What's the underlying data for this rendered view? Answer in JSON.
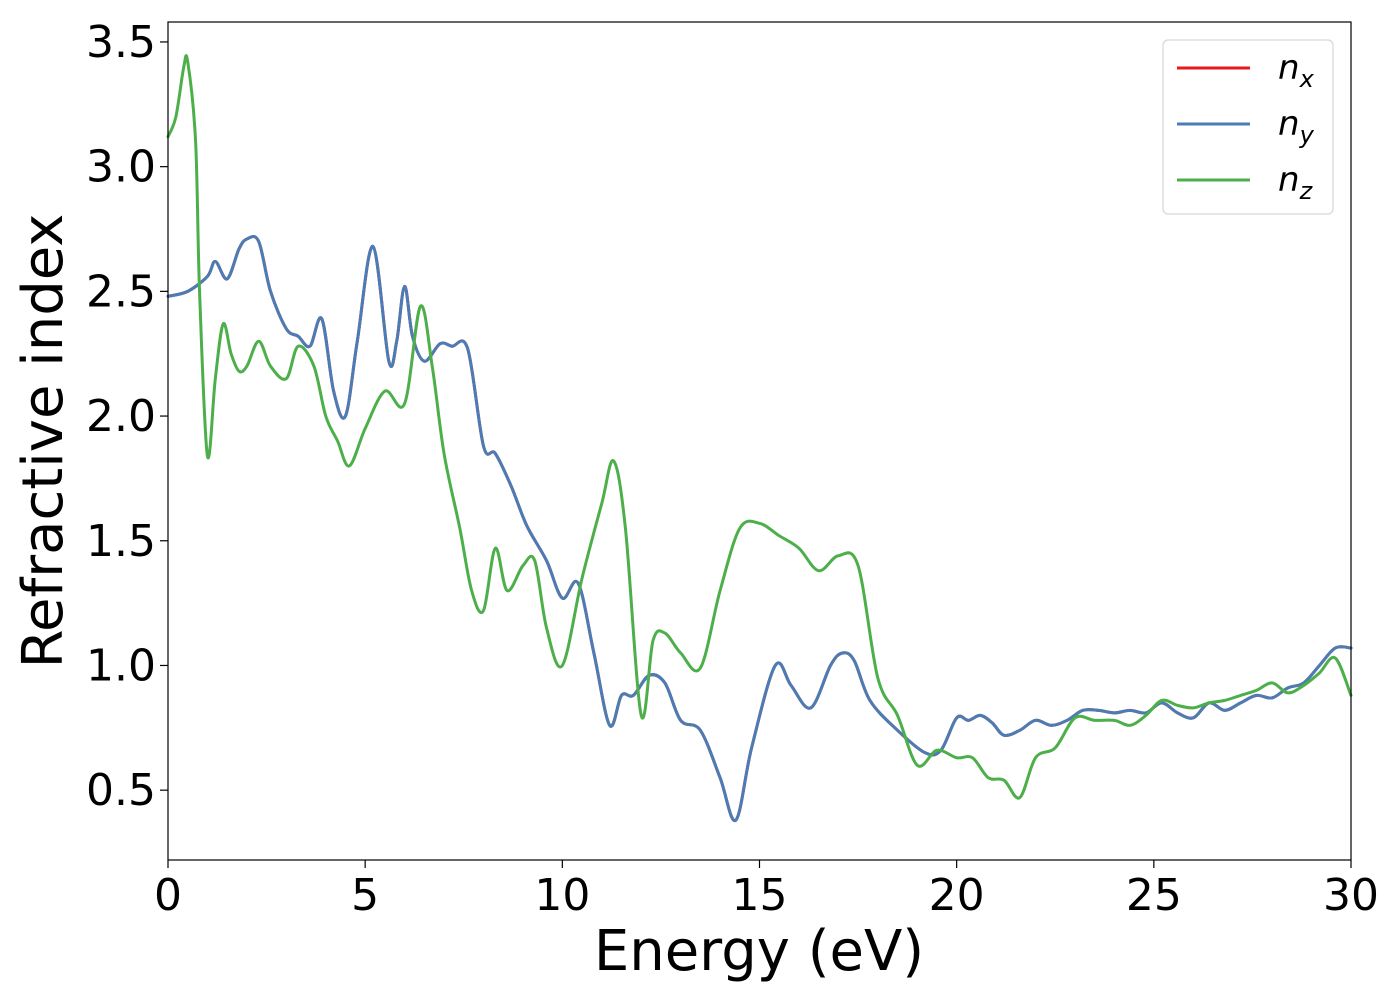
{
  "chart_data": {
    "type": "line",
    "title": "",
    "xlabel": "Energy (eV)",
    "ylabel": "Refractive index",
    "xlim": [
      0,
      30
    ],
    "ylim": [
      0.22,
      3.58
    ],
    "xticks": [
      0,
      5,
      10,
      15,
      20,
      25,
      30
    ],
    "yticks": [
      0.5,
      1.0,
      1.5,
      2.0,
      2.5,
      3.0,
      3.5
    ],
    "xtick_labels": [
      "0",
      "5",
      "10",
      "15",
      "20",
      "25",
      "30"
    ],
    "ytick_labels": [
      "0.5",
      "1.0",
      "1.5",
      "2.0",
      "2.5",
      "3.0",
      "3.5"
    ],
    "grid": false,
    "legend": {
      "position": "top-right"
    },
    "series": [
      {
        "name": "n_x",
        "base": "n",
        "sub": "x",
        "color": "#e41a1c",
        "x": [
          0,
          0.5,
          1,
          1.2,
          1.5,
          1.8,
          2,
          2.3,
          2.6,
          3,
          3.3,
          3.6,
          3.9,
          4.2,
          4.5,
          4.8,
          5.2,
          5.6,
          5.8,
          6,
          6.2,
          6.5,
          6.9,
          7.2,
          7.6,
          8,
          8.3,
          8.7,
          9.1,
          9.6,
          10,
          10.4,
          10.8,
          11.2,
          11.5,
          11.8,
          12.2,
          12.6,
          13,
          13.5,
          14,
          14.4,
          14.8,
          15.4,
          15.8,
          16.3,
          16.8,
          17.1,
          17.4,
          17.8,
          18.5,
          19.2,
          19.6,
          20,
          20.3,
          20.6,
          20.9,
          21.2,
          21.6,
          22,
          22.4,
          22.8,
          23.2,
          23.6,
          24,
          24.4,
          24.8,
          25.2,
          25.6,
          26,
          26.4,
          26.8,
          27.2,
          27.6,
          28,
          28.4,
          28.8,
          29.2,
          29.6,
          30
        ],
        "values": [
          2.48,
          2.5,
          2.56,
          2.62,
          2.55,
          2.67,
          2.71,
          2.7,
          2.5,
          2.35,
          2.32,
          2.28,
          2.39,
          2.1,
          2.0,
          2.3,
          2.68,
          2.22,
          2.3,
          2.52,
          2.32,
          2.22,
          2.29,
          2.28,
          2.27,
          1.88,
          1.85,
          1.72,
          1.56,
          1.42,
          1.27,
          1.33,
          1.05,
          0.76,
          0.88,
          0.88,
          0.96,
          0.93,
          0.78,
          0.74,
          0.55,
          0.38,
          0.67,
          1.0,
          0.92,
          0.83,
          1.0,
          1.05,
          1.02,
          0.86,
          0.74,
          0.65,
          0.66,
          0.79,
          0.78,
          0.8,
          0.77,
          0.72,
          0.74,
          0.78,
          0.76,
          0.78,
          0.82,
          0.82,
          0.81,
          0.82,
          0.81,
          0.85,
          0.81,
          0.79,
          0.85,
          0.82,
          0.85,
          0.88,
          0.87,
          0.91,
          0.93,
          1.0,
          1.07,
          1.07
        ]
      },
      {
        "name": "n_y",
        "base": "n",
        "sub": "y",
        "color": "#4a7db5",
        "x": [
          0,
          0.5,
          1,
          1.2,
          1.5,
          1.8,
          2,
          2.3,
          2.6,
          3,
          3.3,
          3.6,
          3.9,
          4.2,
          4.5,
          4.8,
          5.2,
          5.6,
          5.8,
          6,
          6.2,
          6.5,
          6.9,
          7.2,
          7.6,
          8,
          8.3,
          8.7,
          9.1,
          9.6,
          10,
          10.4,
          10.8,
          11.2,
          11.5,
          11.8,
          12.2,
          12.6,
          13,
          13.5,
          14,
          14.4,
          14.8,
          15.4,
          15.8,
          16.3,
          16.8,
          17.1,
          17.4,
          17.8,
          18.5,
          19.2,
          19.6,
          20,
          20.3,
          20.6,
          20.9,
          21.2,
          21.6,
          22,
          22.4,
          22.8,
          23.2,
          23.6,
          24,
          24.4,
          24.8,
          25.2,
          25.6,
          26,
          26.4,
          26.8,
          27.2,
          27.6,
          28,
          28.4,
          28.8,
          29.2,
          29.6,
          30
        ],
        "values": [
          2.48,
          2.5,
          2.56,
          2.62,
          2.55,
          2.67,
          2.71,
          2.7,
          2.5,
          2.35,
          2.32,
          2.28,
          2.39,
          2.1,
          2.0,
          2.3,
          2.68,
          2.22,
          2.3,
          2.52,
          2.32,
          2.22,
          2.29,
          2.28,
          2.27,
          1.88,
          1.85,
          1.72,
          1.56,
          1.42,
          1.27,
          1.33,
          1.05,
          0.76,
          0.88,
          0.88,
          0.96,
          0.93,
          0.78,
          0.74,
          0.55,
          0.38,
          0.67,
          1.0,
          0.92,
          0.83,
          1.0,
          1.05,
          1.02,
          0.86,
          0.74,
          0.65,
          0.66,
          0.79,
          0.78,
          0.8,
          0.77,
          0.72,
          0.74,
          0.78,
          0.76,
          0.78,
          0.82,
          0.82,
          0.81,
          0.82,
          0.81,
          0.85,
          0.81,
          0.79,
          0.85,
          0.82,
          0.85,
          0.88,
          0.87,
          0.91,
          0.93,
          1.0,
          1.07,
          1.07
        ]
      },
      {
        "name": "n_z",
        "base": "n",
        "sub": "z",
        "color": "#4daf4a",
        "x": [
          0,
          0.2,
          0.4,
          0.5,
          0.7,
          0.8,
          1.0,
          1.2,
          1.4,
          1.6,
          1.8,
          2.0,
          2.3,
          2.6,
          3.0,
          3.3,
          3.7,
          4.0,
          4.3,
          4.6,
          5.0,
          5.5,
          6.0,
          6.4,
          6.7,
          7.0,
          7.4,
          7.7,
          8.0,
          8.3,
          8.6,
          9.0,
          9.3,
          9.6,
          10.0,
          10.5,
          11.0,
          11.3,
          11.6,
          12.0,
          12.3,
          12.6,
          13.0,
          13.5,
          14.0,
          14.5,
          15.0,
          15.5,
          16.0,
          16.5,
          17.0,
          17.5,
          18.0,
          18.5,
          19.0,
          19.5,
          20.0,
          20.4,
          20.8,
          21.2,
          21.6,
          22.0,
          22.5,
          23.0,
          23.5,
          24.0,
          24.4,
          24.8,
          25.2,
          25.6,
          26.0,
          26.4,
          26.8,
          27.2,
          27.6,
          28.0,
          28.4,
          28.8,
          29.2,
          29.6,
          30.0
        ],
        "values": [
          3.12,
          3.2,
          3.4,
          3.42,
          3.1,
          2.5,
          1.84,
          2.15,
          2.37,
          2.25,
          2.18,
          2.2,
          2.3,
          2.2,
          2.15,
          2.28,
          2.2,
          2.0,
          1.9,
          1.8,
          1.95,
          2.1,
          2.05,
          2.44,
          2.2,
          1.85,
          1.55,
          1.3,
          1.22,
          1.47,
          1.3,
          1.4,
          1.42,
          1.15,
          1.0,
          1.35,
          1.65,
          1.82,
          1.55,
          0.8,
          1.1,
          1.13,
          1.05,
          0.99,
          1.3,
          1.55,
          1.57,
          1.52,
          1.47,
          1.38,
          1.44,
          1.4,
          0.95,
          0.8,
          0.6,
          0.66,
          0.63,
          0.63,
          0.55,
          0.54,
          0.47,
          0.63,
          0.67,
          0.79,
          0.78,
          0.78,
          0.76,
          0.8,
          0.86,
          0.84,
          0.83,
          0.85,
          0.86,
          0.88,
          0.9,
          0.93,
          0.89,
          0.92,
          0.97,
          1.03,
          0.88
        ]
      }
    ]
  }
}
